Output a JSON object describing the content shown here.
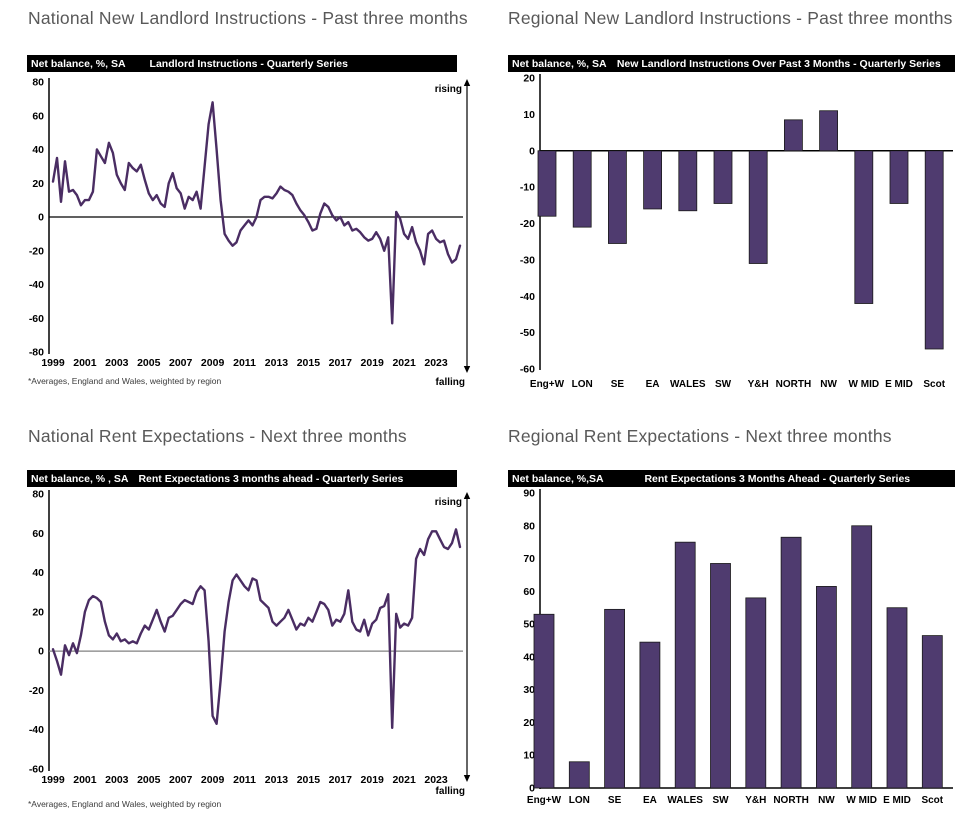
{
  "colors": {
    "line_series": "#4A2D63",
    "bar_fill": "#4F3B6F",
    "bar_border": "#1a1a1a",
    "header_bg": "#000000",
    "header_text": "#FFFFFF",
    "title_text": "#595959",
    "axis": "#000000"
  },
  "chart_data": [
    {
      "id": "national-landlord-instructions",
      "type": "line",
      "panel_title": "National New Landlord Instructions - Past three months",
      "box_label": "Net balance, %, SA",
      "box_title": "Landlord Instructions - Quarterly Series",
      "footnote": "*Averages, England and Wales, weighted by region",
      "rising_label": "rising",
      "falling_label": "falling",
      "x_start_year": 1999,
      "x_quarterly": true,
      "xticks": [
        1999,
        2001,
        2003,
        2005,
        2007,
        2009,
        2011,
        2013,
        2015,
        2017,
        2019,
        2021,
        2023
      ],
      "ylim": [
        -80,
        80
      ],
      "ytick_step": 20,
      "zero_line_color": "#000000",
      "values": [
        21,
        35,
        9,
        33,
        15,
        16,
        13,
        7,
        10,
        10,
        15,
        40,
        36,
        32,
        44,
        38,
        25,
        20,
        16,
        32,
        29,
        27,
        31,
        22,
        14,
        10,
        13,
        8,
        6,
        20,
        26,
        17,
        14,
        5,
        12,
        10,
        15,
        5,
        30,
        55,
        68,
        40,
        10,
        -10,
        -14,
        -17,
        -15,
        -8,
        -5,
        -2,
        -5,
        0,
        10,
        12,
        12,
        11,
        14,
        18,
        16,
        15,
        13,
        8,
        4,
        1,
        -3,
        -8,
        -7,
        2,
        8,
        6,
        1,
        -2,
        0,
        -5,
        -3,
        -8,
        -7,
        -9,
        -12,
        -14,
        -13,
        -9,
        -13,
        -20,
        -12,
        -63,
        3,
        -1,
        -10,
        -13,
        -6,
        -15,
        -20,
        -28,
        -10,
        -8,
        -13,
        -15,
        -14,
        -22,
        -27,
        -25,
        -17
      ]
    },
    {
      "id": "regional-landlord-instructions",
      "type": "bar",
      "panel_title": "Regional New Landlord Instructions - Past three months",
      "box_label": "Net balance, %, SA",
      "box_title": "New Landlord Instructions Over Past 3 Months - Quarterly Series",
      "categories": [
        "Eng+W",
        "LON",
        "SE",
        "EA",
        "WALES",
        "SW",
        "Y&H",
        "NORTH",
        "NW",
        "W MID",
        "E MID",
        "Scot"
      ],
      "values": [
        -18,
        -21,
        -25.5,
        -16,
        -16.5,
        -14.5,
        -31,
        8.5,
        11,
        -42,
        -14.5,
        -54.5
      ],
      "ylim": [
        -60,
        20
      ],
      "ytick_step": 10
    },
    {
      "id": "national-rent-expectations",
      "type": "line",
      "panel_title": "National Rent Expectations - Next three months",
      "box_label": "Net balance, % , SA",
      "box_title": "Rent Expectations 3 months ahead - Quarterly Series",
      "footnote": "*Averages, England and Wales, weighted by region",
      "rising_label": "rising",
      "falling_label": "falling",
      "x_start_year": 1999,
      "x_quarterly": true,
      "xticks": [
        1999,
        2001,
        2003,
        2005,
        2007,
        2009,
        2011,
        2013,
        2015,
        2017,
        2019,
        2021,
        2023
      ],
      "ylim": [
        -60,
        80
      ],
      "ytick_step": 20,
      "zero_line_color": "#808080",
      "values": [
        1,
        -5,
        -12,
        3,
        -2,
        4,
        -1,
        8,
        20,
        26,
        28,
        27,
        25,
        15,
        8,
        6,
        9,
        5,
        6,
        4,
        5,
        4,
        9,
        13,
        11,
        16,
        21,
        15,
        10,
        17,
        18,
        21,
        24,
        26,
        25,
        24,
        30,
        33,
        31,
        5,
        -33,
        -37,
        -15,
        10,
        25,
        36,
        39,
        36,
        33,
        31,
        37,
        36,
        26,
        24,
        22,
        15,
        13,
        15,
        17,
        21,
        16,
        11,
        14,
        13,
        17,
        15,
        20,
        25,
        24,
        21,
        13,
        16,
        15,
        19,
        31,
        15,
        11,
        10,
        16,
        8,
        14,
        16,
        22,
        23,
        29,
        -39,
        19,
        12,
        14,
        13,
        17,
        47,
        52,
        49,
        57,
        61,
        61,
        57,
        53,
        52,
        55,
        62,
        53
      ]
    },
    {
      "id": "regional-rent-expectations",
      "type": "bar",
      "panel_title": "Regional Rent Expectations - Next three months",
      "box_label": "Net balance, %,SA",
      "box_title": "Rent Expectations 3 Months Ahead - Quarterly Series",
      "categories": [
        "Eng+W",
        "LON",
        "SE",
        "EA",
        "WALES",
        "SW",
        "Y&H",
        "NORTH",
        "NW",
        "W MID",
        "E MID",
        "Scot"
      ],
      "values": [
        53,
        8,
        54.5,
        44.5,
        75,
        68.5,
        58,
        76.5,
        61.5,
        80,
        55,
        46.5
      ],
      "ylim": [
        0,
        90
      ],
      "ytick_step": 10
    }
  ]
}
